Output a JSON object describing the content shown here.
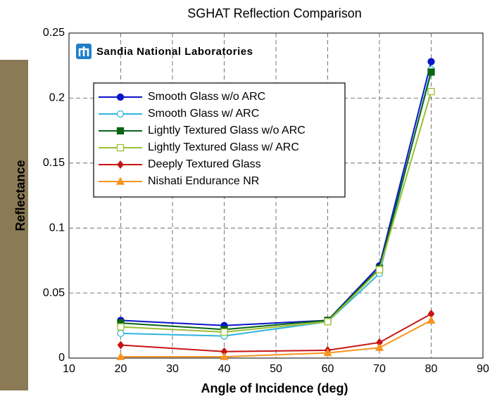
{
  "chart_data": {
    "type": "line",
    "title": "SGHAT Reflection Comparison",
    "logo": "Sandia National Laboratories",
    "x_label": "Angle of Incidence (deg)",
    "y_label": "Reflectance",
    "x": [
      20,
      40,
      60,
      70,
      80
    ],
    "series": [
      {
        "name": "Smooth Glass w/o ARC",
        "color": "#0a14c8",
        "marker": "circle",
        "filled": true,
        "values": [
          0.029,
          0.025,
          0.029,
          0.071,
          0.228
        ]
      },
      {
        "name": "Smooth Glass w/ ARC",
        "color": "#2fb4e0",
        "marker": "circle",
        "filled": false,
        "values": [
          0.019,
          0.017,
          0.028,
          0.065,
          0.222
        ]
      },
      {
        "name": "Lightly Textured Glass w/o ARC",
        "color": "#0a6414",
        "marker": "square",
        "filled": true,
        "values": [
          0.027,
          0.022,
          0.029,
          0.069,
          0.22
        ]
      },
      {
        "name": "Lightly Textured Glass w/ ARC",
        "color": "#9cbf32",
        "marker": "square",
        "filled": false,
        "values": [
          0.024,
          0.02,
          0.028,
          0.068,
          0.205
        ]
      },
      {
        "name": "Deeply Textured Glass",
        "color": "#c81414",
        "marker": "diamond",
        "filled": true,
        "values": [
          0.01,
          0.005,
          0.006,
          0.012,
          0.034
        ]
      },
      {
        "name": "Nishati Endurance NR",
        "color": "#f7941e",
        "marker": "triangle",
        "filled": true,
        "values": [
          0.001,
          0.001,
          0.004,
          0.008,
          0.029
        ]
      }
    ],
    "xlim": [
      10,
      90
    ],
    "xticks": [
      10,
      20,
      30,
      40,
      50,
      60,
      70,
      80,
      90
    ],
    "ylim": [
      0,
      0.25
    ],
    "yticks": [
      0,
      0.05,
      0.1,
      0.15,
      0.2,
      0.25
    ],
    "grid": true
  }
}
